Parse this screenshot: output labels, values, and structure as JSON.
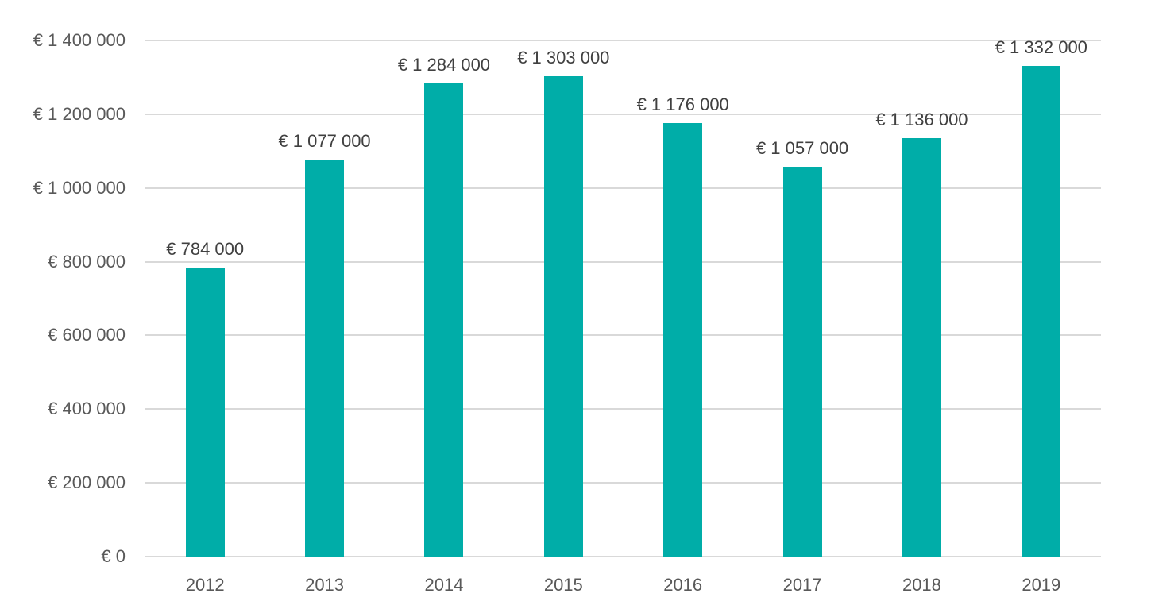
{
  "chart_data": {
    "type": "bar",
    "title": "",
    "xlabel": "",
    "ylabel": "",
    "categories": [
      "2012",
      "2013",
      "2014",
      "2015",
      "2016",
      "2017",
      "2018",
      "2019"
    ],
    "values": [
      784000,
      1077000,
      1284000,
      1303000,
      1176000,
      1057000,
      1136000,
      1332000
    ],
    "data_labels": [
      "€ 784 000",
      "€ 1 077 000",
      "€ 1 284 000",
      "€ 1 303 000",
      "€ 1 176 000",
      "€ 1 057 000",
      "€ 1 136 000",
      "€ 1 332 000"
    ],
    "ylim": [
      0,
      1400000
    ],
    "yticks": [
      0,
      200000,
      400000,
      600000,
      800000,
      1000000,
      1200000,
      1400000
    ],
    "ytick_labels": [
      "€ 0",
      "€ 200 000",
      "€ 400 000",
      "€ 600 000",
      "€ 800 000",
      "€ 1 000 000",
      "€ 1 200 000",
      "€ 1 400 000"
    ],
    "grid": true,
    "legend": null,
    "bar_color": "#00ADA8"
  }
}
